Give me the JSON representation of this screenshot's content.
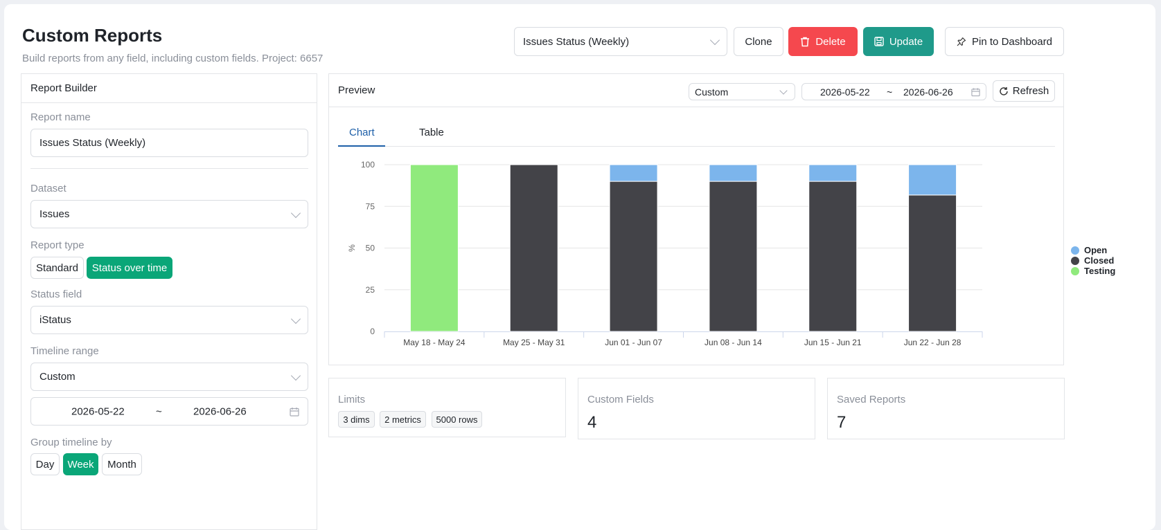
{
  "header": {
    "title": "Custom Reports",
    "subtitle": "Build reports from any field, including custom fields. Project: 6657",
    "report_select": "Issues Status (Weekly)",
    "clone_label": "Clone",
    "delete_label": "Delete",
    "update_label": "Update",
    "pin_label": "Pin to Dashboard"
  },
  "builder": {
    "title": "Report Builder",
    "report_name_label": "Report name",
    "report_name_value": "Issues Status (Weekly)",
    "dataset_label": "Dataset",
    "dataset_value": "Issues",
    "report_type_label": "Report type",
    "report_types": [
      "Standard",
      "Status over time"
    ],
    "report_type_selected": "Status over time",
    "status_field_label": "Status field",
    "status_field_value": "iStatus",
    "timeline_range_label": "Timeline range",
    "timeline_range_value": "Custom",
    "date_start": "2026-05-22",
    "date_sep": "~",
    "date_end": "2026-06-26",
    "group_label": "Group timeline by",
    "group_options": [
      "Day",
      "Week",
      "Month"
    ],
    "group_selected": "Week"
  },
  "preview": {
    "title": "Preview",
    "range_select": "Custom",
    "date_start": "2026-05-22",
    "date_sep": "~",
    "date_end": "2026-06-26",
    "refresh_label": "Refresh",
    "tabs": [
      "Chart",
      "Table"
    ],
    "active_tab": "Chart"
  },
  "chart_data": {
    "type": "bar",
    "stacked": true,
    "ylabel": "%",
    "ylim": [
      0,
      100
    ],
    "yticks": [
      0,
      25,
      50,
      75,
      100
    ],
    "grid": true,
    "legend_position": "right",
    "categories": [
      "May 18 - May 24",
      "May 25 - May 31",
      "Jun 01 - Jun 07",
      "Jun 08 - Jun 14",
      "Jun 15 - Jun 21",
      "Jun 22 - Jun 28"
    ],
    "series": [
      {
        "name": "Testing",
        "color": "#90ea7d",
        "values": [
          100,
          0,
          0,
          0,
          0,
          0
        ]
      },
      {
        "name": "Closed",
        "color": "#434348",
        "values": [
          0,
          100,
          90,
          90,
          90,
          81.8
        ]
      },
      {
        "name": "Open",
        "color": "#7cb5ec",
        "values": [
          0,
          0,
          10,
          10,
          10,
          18.2
        ]
      }
    ],
    "legend_order": [
      "Open",
      "Closed",
      "Testing"
    ]
  },
  "stats": {
    "limits_title": "Limits",
    "limits": [
      "3 dims",
      "2 metrics",
      "5000 rows"
    ],
    "custom_fields_title": "Custom Fields",
    "custom_fields_value": "4",
    "saved_reports_title": "Saved Reports",
    "saved_reports_value": "7"
  },
  "colors": {
    "accent_green": "#0aa678",
    "danger": "#f5484e",
    "primary_teal": "#1f9a8a",
    "tab_active": "#1d5fa8"
  }
}
